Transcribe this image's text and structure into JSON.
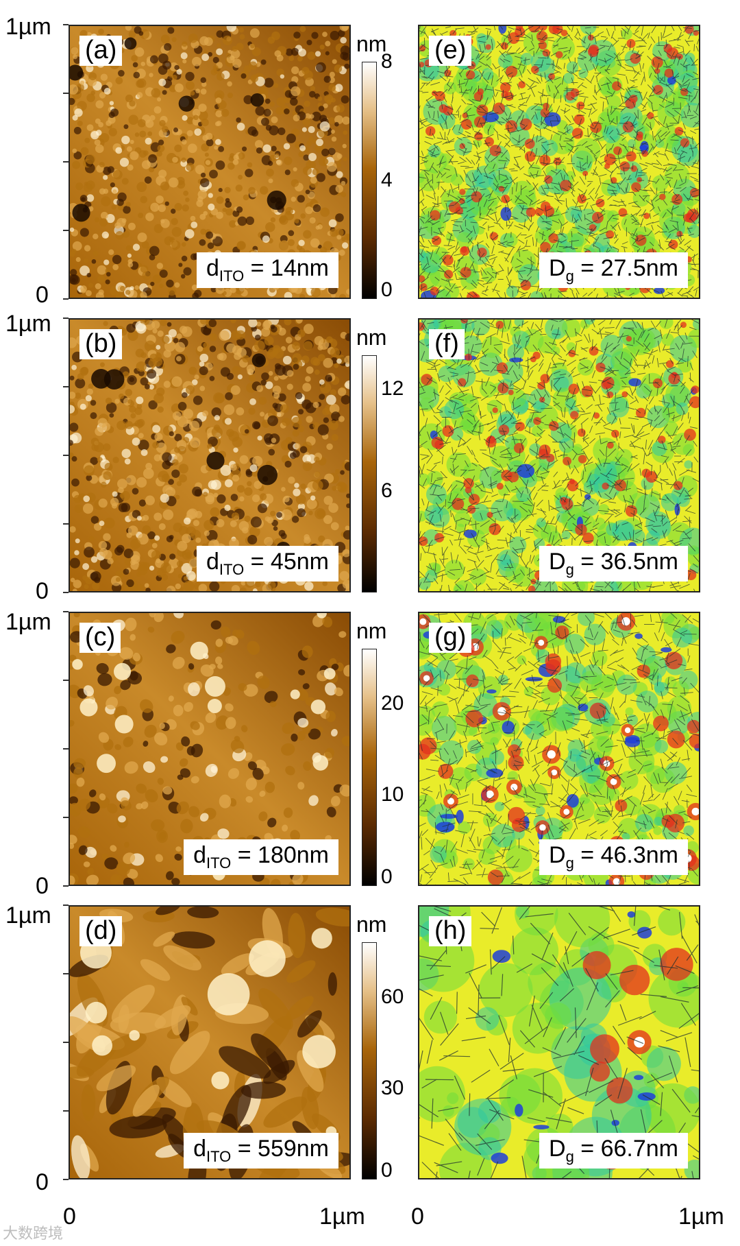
{
  "axis": {
    "top_label": "1µm",
    "zero_label": "0",
    "x_start": "0",
    "x_end": "1µm"
  },
  "unit": "nm",
  "rows": [
    {
      "afm": {
        "tag": "(a)",
        "readout_prefix": "d",
        "readout_sub": "ITO",
        "readout_value": " = 14nm",
        "max_nm": 8
      },
      "grain": {
        "tag": "(e)",
        "readout_prefix": "D",
        "readout_sub": "g",
        "readout_value": " = 27.5nm"
      },
      "colorbar_ticks": [
        "8",
        "4",
        "0"
      ]
    },
    {
      "afm": {
        "tag": "(b)",
        "readout_prefix": "d",
        "readout_sub": "ITO",
        "readout_value": " = 45nm",
        "max_nm": 14
      },
      "grain": {
        "tag": "(f)",
        "readout_prefix": "D",
        "readout_sub": "g",
        "readout_value": " = 36.5nm"
      },
      "colorbar_ticks": [
        "12",
        "6"
      ]
    },
    {
      "afm": {
        "tag": "(c)",
        "readout_prefix": "d",
        "readout_sub": "ITO",
        "readout_value": " = 180nm",
        "max_nm": 26
      },
      "grain": {
        "tag": "(g)",
        "readout_prefix": "D",
        "readout_sub": "g",
        "readout_value": " = 46.3nm"
      },
      "colorbar_ticks": [
        "20",
        "10",
        "0"
      ]
    },
    {
      "afm": {
        "tag": "(d)",
        "readout_prefix": "d",
        "readout_sub": "ITO",
        "readout_value": " = 559nm",
        "max_nm": 78
      },
      "grain": {
        "tag": "(h)",
        "readout_prefix": "D",
        "readout_sub": "g",
        "readout_value": " = 66.7nm"
      },
      "colorbar_ticks": [
        "60",
        "30",
        "0"
      ]
    }
  ],
  "colors": {
    "afm_dark": "#1a0a00",
    "afm_mid": "#a8650a",
    "afm_light": "#ffffff",
    "grain_yellow": "#e9ec2a",
    "grain_green": "#6fdc3c",
    "grain_blue": "#1f3fd8",
    "grain_red": "#e1301e",
    "grain_boundary": "#203030"
  },
  "watermark": "大数跨境"
}
